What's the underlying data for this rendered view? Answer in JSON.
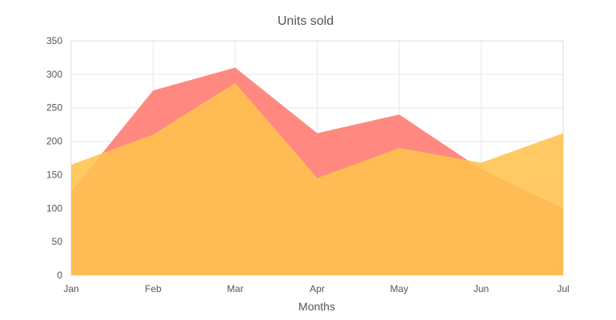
{
  "chart_data": {
    "type": "area",
    "title": "Units sold",
    "xlabel": "Months",
    "ylabel": "",
    "categories": [
      "Jan",
      "Feb",
      "Mar",
      "Apr",
      "May",
      "Jun",
      "Jul"
    ],
    "ylim": [
      0,
      350
    ],
    "yticks": [
      0,
      50,
      100,
      150,
      200,
      250,
      300,
      350
    ],
    "grid": true,
    "series": [
      {
        "values": [
          125,
          276,
          310,
          212,
          240,
          158,
          100
        ],
        "color": "#ff7f75"
      },
      {
        "values": [
          165,
          210,
          287,
          145,
          190,
          168,
          212
        ],
        "color": "#ffc34f"
      }
    ]
  }
}
